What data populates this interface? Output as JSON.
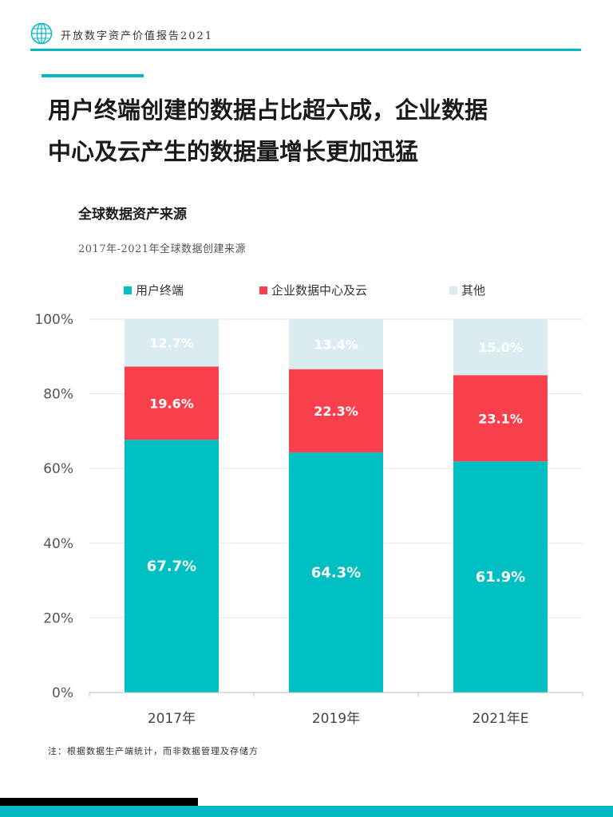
{
  "header": {
    "logo_icon": "globe-icon",
    "title": "开放数字资产价值报告2021",
    "accent_color": "#00b8c2"
  },
  "headline": {
    "line1": "用户终端创建的数据占比超六成，企业数据",
    "line2": "中心及云产生的数据量增长更加迅猛"
  },
  "section": {
    "title": "全球数据资产来源"
  },
  "footnote": "注：根据数据生产端统计，而非数据管理及存储方",
  "chart_data": {
    "type": "bar",
    "stacked": true,
    "subtitle": "2017年-2021年全球数据创建来源",
    "categories": [
      "2017年",
      "2019年",
      "2021年E"
    ],
    "series": [
      {
        "name": "用户终端",
        "color": "#00bfc2",
        "values": [
          67.7,
          64.3,
          61.9
        ],
        "labels": [
          "67.7%",
          "64.3%",
          "61.9%"
        ]
      },
      {
        "name": "企业数据中心及云",
        "color": "#fa3f4d",
        "values": [
          19.6,
          22.3,
          23.1
        ],
        "labels": [
          "19.6%",
          "22.3%",
          "23.1%"
        ]
      },
      {
        "name": "其他",
        "color": "#dbecf1",
        "values": [
          12.7,
          13.4,
          15.0
        ],
        "labels": [
          "12.7%",
          "13.4%",
          "15.0%"
        ]
      }
    ],
    "ylim": [
      0,
      100
    ],
    "yticks": [
      "0%",
      "20%",
      "40%",
      "60%",
      "80%",
      "100%"
    ],
    "grid": true,
    "legend_position": "top"
  }
}
